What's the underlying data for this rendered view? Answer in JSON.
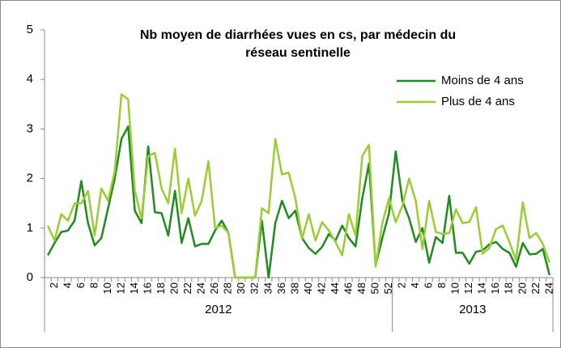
{
  "chart_data": {
    "type": "line",
    "title": [
      "Nb moyen de diarrhées vues en cs, par médecin du",
      "réseau sentinelle"
    ],
    "categories": [
      null,
      "2",
      null,
      "4",
      null,
      "6",
      null,
      "8",
      null,
      "10",
      null,
      "12",
      null,
      "14",
      null,
      "16",
      null,
      "18",
      null,
      "20",
      null,
      "22",
      null,
      "24",
      null,
      "26",
      null,
      "28",
      null,
      "30",
      null,
      "32",
      null,
      "34",
      null,
      "36",
      null,
      "38",
      null,
      "40",
      null,
      "42",
      null,
      "44",
      null,
      "46",
      null,
      "48",
      null,
      "50",
      null,
      "52",
      null,
      "2",
      null,
      "4",
      null,
      "6",
      null,
      "8",
      null,
      "10",
      null,
      "12",
      null,
      "14",
      null,
      "16",
      null,
      "18",
      null,
      "20",
      null,
      "22",
      null,
      "24"
    ],
    "groups": [
      {
        "label": "2012",
        "span": 52
      },
      {
        "label": "2013",
        "span": 24
      }
    ],
    "series": [
      {
        "name": "Moins de 4 ans",
        "color": "#1e8c1e",
        "values": [
          0.45,
          0.7,
          0.92,
          0.95,
          1.15,
          1.95,
          1.1,
          0.65,
          0.8,
          1.4,
          2.0,
          2.8,
          3.05,
          1.35,
          1.1,
          2.65,
          1.32,
          1.3,
          0.85,
          1.75,
          0.7,
          1.2,
          0.63,
          0.68,
          0.68,
          0.95,
          1.15,
          0.9,
          0,
          0,
          0,
          0,
          1.15,
          0,
          1.1,
          1.55,
          1.2,
          1.35,
          0.8,
          0.6,
          0.48,
          0.62,
          0.88,
          0.75,
          1.05,
          0.8,
          0.63,
          1.6,
          2.3,
          0.25,
          0.8,
          1.3,
          2.55,
          1.55,
          1.2,
          0.72,
          1.0,
          0.3,
          0.82,
          0.7,
          1.65,
          0.5,
          0.5,
          0.28,
          0.52,
          0.55,
          0.67,
          0.72,
          0.58,
          0.5,
          0.22,
          0.7,
          0.47,
          0.48,
          0.58,
          0.05
        ]
      },
      {
        "name": "Plus de 4 ans",
        "color": "#9acd32",
        "values": [
          1.05,
          0.75,
          1.28,
          1.15,
          1.5,
          1.5,
          1.75,
          0.85,
          1.8,
          1.55,
          2.15,
          3.7,
          3.6,
          1.75,
          1.2,
          2.45,
          2.52,
          1.8,
          1.5,
          2.6,
          1.3,
          2.0,
          1.25,
          1.55,
          2.35,
          1.0,
          1.05,
          0.9,
          0,
          0,
          0,
          0,
          1.4,
          1.3,
          2.8,
          2.08,
          2.12,
          1.6,
          0.78,
          1.28,
          0.75,
          1.12,
          0.95,
          0.72,
          0.45,
          1.28,
          0.85,
          2.45,
          2.68,
          0.22,
          1.1,
          1.6,
          1.12,
          1.45,
          2.0,
          1.55,
          0.58,
          1.55,
          0.92,
          0.88,
          0.9,
          1.38,
          1.1,
          1.12,
          1.42,
          0.48,
          0.6,
          0.98,
          1.05,
          0.72,
          0.35,
          1.52,
          0.8,
          0.9,
          0.68,
          0.3
        ]
      }
    ],
    "ylim": [
      0,
      5
    ],
    "yticks": [
      0,
      1,
      2,
      3,
      4,
      5
    ],
    "grid": false,
    "legend": "upper right"
  }
}
